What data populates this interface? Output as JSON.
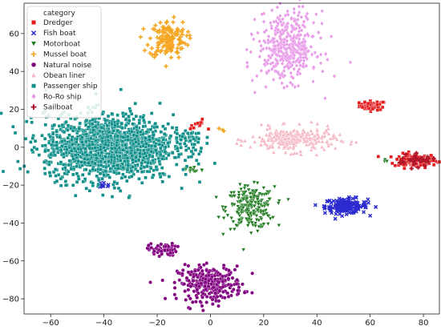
{
  "chart_data": {
    "type": "scatter",
    "title": "",
    "xlabel": "",
    "ylabel": "",
    "xlim": [
      -70,
      86
    ],
    "ylim": [
      -88,
      76
    ],
    "xticks": [
      -60,
      -40,
      -20,
      0,
      20,
      40,
      60,
      80
    ],
    "yticks": [
      -80,
      -60,
      -40,
      -20,
      0,
      20,
      40,
      60
    ],
    "grid": false,
    "legend": {
      "title": "category",
      "placement": "top-left"
    },
    "series": [
      {
        "name": "Dredger",
        "color": "#e41a1c",
        "marker": "square",
        "clusters": [
          {
            "cx": 61,
            "cy": 22,
            "sx": 2.5,
            "sy": 1.2,
            "n": 60
          },
          {
            "cx": 77,
            "cy": -7,
            "sx": 4,
            "sy": 1.8,
            "n": 130
          },
          {
            "cx": -4,
            "cy": 12,
            "sx": 1.2,
            "sy": 1.2,
            "n": 10
          },
          {
            "cx": -7,
            "cy": 10,
            "sx": 0.6,
            "sy": 0.6,
            "n": 3
          }
        ]
      },
      {
        "name": "Fish boat",
        "color": "#2b2bcf",
        "marker": "x",
        "clusters": [
          {
            "cx": 51,
            "cy": -31,
            "sx": 4,
            "sy": 2,
            "n": 160
          },
          {
            "cx": -40,
            "cy": -20,
            "sx": 1.5,
            "sy": 1,
            "n": 10
          }
        ]
      },
      {
        "name": "Motorboat",
        "color": "#1e7a1e",
        "marker": "triangle-down",
        "clusters": [
          {
            "cx": 15,
            "cy": -32,
            "sx": 4.5,
            "sy": 5.5,
            "n": 240
          },
          {
            "cx": -7,
            "cy": -12,
            "sx": 2.2,
            "sy": 1,
            "n": 18
          },
          {
            "cx": 66,
            "cy": -7,
            "sx": 0.7,
            "sy": 0.6,
            "n": 3
          }
        ]
      },
      {
        "name": "Mussel boat",
        "color": "#f5a623",
        "marker": "plus",
        "clusters": [
          {
            "cx": -16,
            "cy": 57,
            "sx": 3.5,
            "sy": 5,
            "n": 140
          },
          {
            "cx": 4,
            "cy": 9,
            "sx": 0.6,
            "sy": 0.6,
            "n": 3
          }
        ]
      },
      {
        "name": "Natural noise",
        "color": "#800080",
        "marker": "circle",
        "clusters": [
          {
            "cx": -18,
            "cy": -54,
            "sx": 2.6,
            "sy": 1.6,
            "n": 70
          },
          {
            "cx": 0,
            "cy": -72,
            "sx": 6,
            "sy": 4.5,
            "n": 300
          }
        ]
      },
      {
        "name": "Obean liner",
        "color": "#f4b6c2",
        "marker": "triangle-up",
        "clusters": [
          {
            "cx": 31,
            "cy": 4,
            "sx": 8,
            "sy": 3.2,
            "n": 260
          }
        ]
      },
      {
        "name": "Passenger ship",
        "color": "#0e8f8a",
        "marker": "square",
        "clusters": [
          {
            "cx": -38,
            "cy": 0,
            "sx": 12,
            "sy": 8.5,
            "n": 1500
          },
          {
            "cx": -8,
            "cy": 4,
            "sx": 3,
            "sy": 3,
            "n": 40
          }
        ]
      },
      {
        "name": "Ro-Ro ship",
        "color": "#e89be8",
        "marker": "diamond",
        "clusters": [
          {
            "cx": 29,
            "cy": 53,
            "sx": 5.5,
            "sy": 9,
            "n": 420
          }
        ]
      },
      {
        "name": "Sailboat",
        "color": "#b2182b",
        "marker": "cross",
        "clusters": [
          {
            "cx": 77,
            "cy": -7,
            "sx": 3.5,
            "sy": 1.5,
            "n": 40
          }
        ]
      }
    ]
  }
}
